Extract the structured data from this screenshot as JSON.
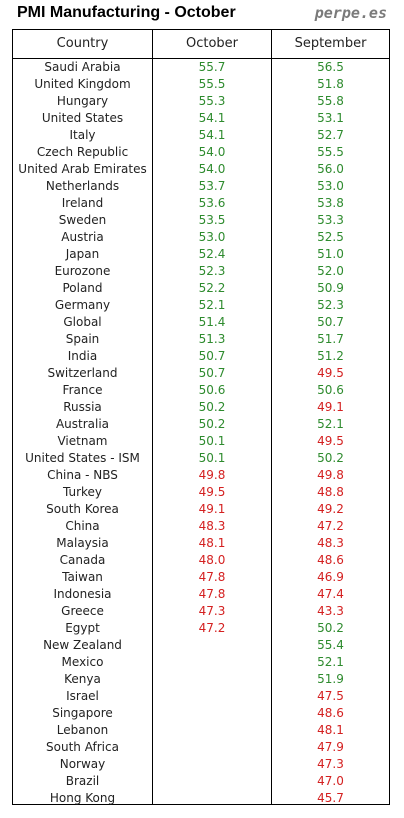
{
  "header": {
    "title": "PMI Manufacturing - October",
    "brand": "perpe.es"
  },
  "table": {
    "columns": [
      "Country",
      "October",
      "September"
    ],
    "threshold": 50,
    "colors": {
      "above": "#2e8b2e",
      "below": "#d42020"
    },
    "rows": [
      {
        "country": "Saudi Arabia",
        "october": "55.7",
        "september": "56.5"
      },
      {
        "country": "United Kingdom",
        "october": "55.5",
        "september": "51.8"
      },
      {
        "country": "Hungary",
        "october": "55.3",
        "september": "55.8"
      },
      {
        "country": "United States",
        "october": "54.1",
        "september": "53.1"
      },
      {
        "country": "Italy",
        "october": "54.1",
        "september": "52.7"
      },
      {
        "country": "Czech Republic",
        "october": "54.0",
        "september": "55.5"
      },
      {
        "country": "United Arab Emirates",
        "october": "54.0",
        "september": "56.0"
      },
      {
        "country": "Netherlands",
        "october": "53.7",
        "september": "53.0"
      },
      {
        "country": "Ireland",
        "october": "53.6",
        "september": "53.8"
      },
      {
        "country": "Sweden",
        "october": "53.5",
        "september": "53.3"
      },
      {
        "country": "Austria",
        "october": "53.0",
        "september": "52.5"
      },
      {
        "country": "Japan",
        "october": "52.4",
        "september": "51.0"
      },
      {
        "country": "Eurozone",
        "october": "52.3",
        "september": "52.0"
      },
      {
        "country": "Poland",
        "october": "52.2",
        "september": "50.9"
      },
      {
        "country": "Germany",
        "october": "52.1",
        "september": "52.3"
      },
      {
        "country": "Global",
        "october": "51.4",
        "september": "50.7"
      },
      {
        "country": "Spain",
        "october": "51.3",
        "september": "51.7"
      },
      {
        "country": "India",
        "october": "50.7",
        "september": "51.2"
      },
      {
        "country": "Switzerland",
        "october": "50.7",
        "september": "49.5"
      },
      {
        "country": "France",
        "october": "50.6",
        "september": "50.6"
      },
      {
        "country": "Russia",
        "october": "50.2",
        "september": "49.1"
      },
      {
        "country": "Australia",
        "october": "50.2",
        "september": "52.1"
      },
      {
        "country": "Vietnam",
        "october": "50.1",
        "september": "49.5"
      },
      {
        "country": "United States - ISM",
        "october": "50.1",
        "september": "50.2"
      },
      {
        "country": "China - NBS",
        "october": "49.8",
        "september": "49.8"
      },
      {
        "country": "Turkey",
        "october": "49.5",
        "september": "48.8"
      },
      {
        "country": "South Korea",
        "october": "49.1",
        "september": "49.2"
      },
      {
        "country": "China",
        "october": "48.3",
        "september": "47.2"
      },
      {
        "country": "Malaysia",
        "october": "48.1",
        "september": "48.3"
      },
      {
        "country": "Canada",
        "october": "48.0",
        "september": "48.6"
      },
      {
        "country": "Taiwan",
        "october": "47.8",
        "september": "46.9"
      },
      {
        "country": "Indonesia",
        "october": "47.8",
        "september": "47.4"
      },
      {
        "country": "Greece",
        "october": "47.3",
        "september": "43.3"
      },
      {
        "country": "Egypt",
        "october": "47.2",
        "september": "50.2"
      },
      {
        "country": "New Zealand",
        "october": "",
        "september": "55.4"
      },
      {
        "country": "Mexico",
        "october": "",
        "september": "52.1"
      },
      {
        "country": "Kenya",
        "october": "",
        "september": "51.9"
      },
      {
        "country": "Israel",
        "october": "",
        "september": "47.5"
      },
      {
        "country": "Singapore",
        "october": "",
        "september": "48.6"
      },
      {
        "country": "Lebanon",
        "october": "",
        "september": "48.1"
      },
      {
        "country": "South Africa",
        "october": "",
        "september": "47.9"
      },
      {
        "country": "Norway",
        "october": "",
        "september": "47.3"
      },
      {
        "country": "Brazil",
        "october": "",
        "september": "47.0"
      },
      {
        "country": "Hong Kong",
        "october": "",
        "september": "45.7"
      }
    ]
  }
}
